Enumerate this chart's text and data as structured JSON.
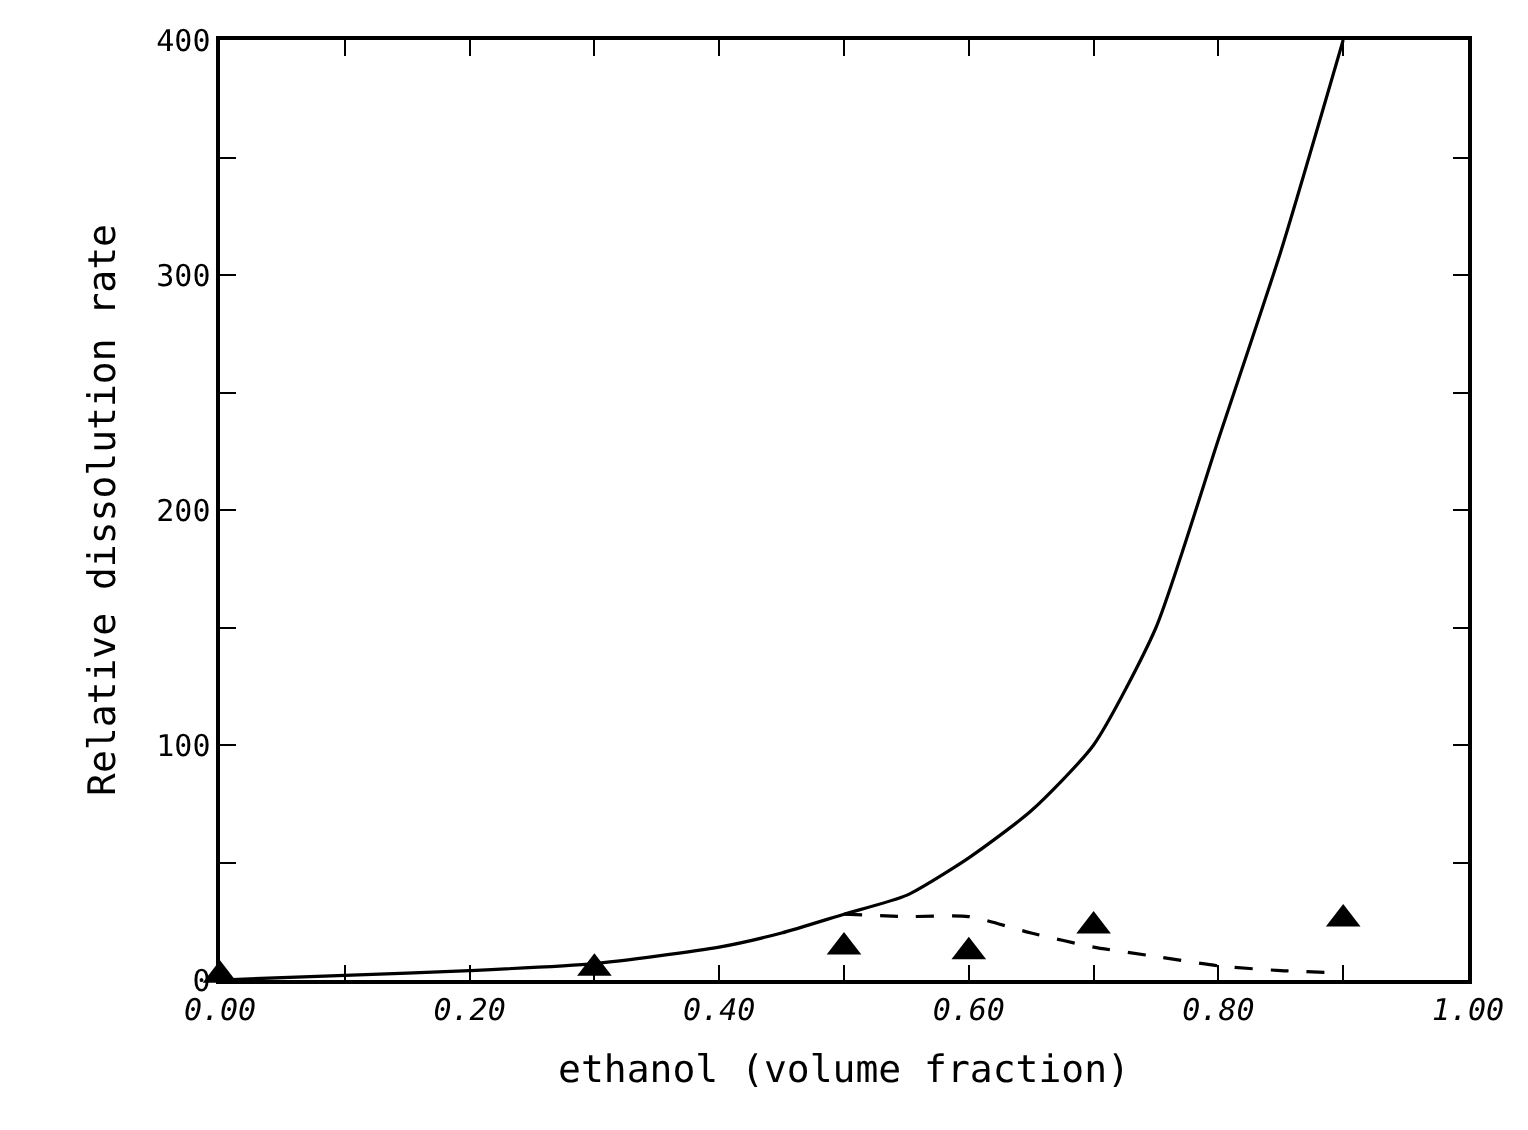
{
  "chart_data": {
    "type": "line",
    "xlabel": "ethanol (volume fraction)",
    "ylabel": "Relative dissolution rate",
    "xlim": [
      0,
      1
    ],
    "ylim": [
      0,
      400
    ],
    "xticks": [
      {
        "value": 0,
        "label": "0.00"
      },
      {
        "value": 0.1,
        "label": null
      },
      {
        "value": 0.2,
        "label": "0.20"
      },
      {
        "value": 0.3,
        "label": null
      },
      {
        "value": 0.4,
        "label": "0.40"
      },
      {
        "value": 0.5,
        "label": null
      },
      {
        "value": 0.6,
        "label": "0.60"
      },
      {
        "value": 0.7,
        "label": null
      },
      {
        "value": 0.8,
        "label": "0.80"
      },
      {
        "value": 0.9,
        "label": null
      },
      {
        "value": 1,
        "label": "1.00"
      }
    ],
    "yticks": [
      0,
      {
        "value": 50,
        "label": null
      },
      100,
      {
        "value": 150,
        "label": null
      },
      200,
      {
        "value": 250,
        "label": null
      },
      300,
      {
        "value": 350,
        "label": null
      },
      400
    ],
    "series": [
      {
        "line_style": "solid",
        "marker": "none",
        "color": "#000000",
        "x": [
          0,
          0.1,
          0.2,
          0.3,
          0.4,
          0.45,
          0.5,
          0.55,
          0.6,
          0.65,
          0.7,
          0.75,
          0.8,
          0.85,
          0.9
        ],
        "values": [
          0,
          2,
          4,
          7,
          14,
          20,
          28,
          36,
          52,
          72,
          100,
          150,
          230,
          310,
          400
        ]
      },
      {
        "line_style": "dashed",
        "marker": "none",
        "color": "#000000",
        "x": [
          0.5,
          0.55,
          0.6,
          0.65,
          0.7,
          0.75,
          0.8,
          0.85,
          0.9
        ],
        "values": [
          28,
          27,
          27,
          20,
          14,
          10,
          6,
          4,
          3
        ]
      },
      {
        "type": "scatter",
        "marker": "triangle",
        "color": "#000000",
        "x": [
          0,
          0.3,
          0.5,
          0.6,
          0.7,
          0.9
        ],
        "values": [
          2,
          5,
          14,
          12,
          23,
          26
        ]
      }
    ]
  }
}
